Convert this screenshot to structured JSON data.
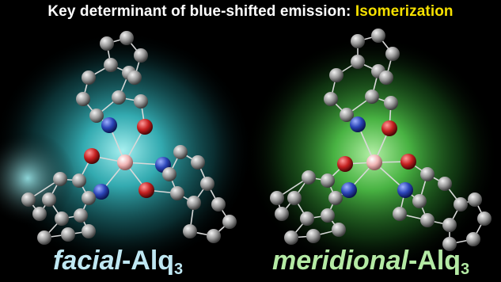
{
  "header": {
    "title_prefix": "Key determinant of blue-shifted emission: ",
    "title_highlight": "Isomerization"
  },
  "panels": [
    {
      "name": "facial",
      "label_italic": "facial",
      "label_rest": "-Alq",
      "label_sub": "3",
      "glow_color": "#3cc8cf"
    },
    {
      "name": "meridional",
      "label_italic": "meridional",
      "label_rest": "-Alq",
      "label_sub": "3",
      "glow_color": "#55d24e"
    }
  ],
  "colors": {
    "carbon": "#9a9a9a",
    "nitrogen": "#2b45b8",
    "oxygen": "#c42020",
    "aluminum": "#f0b4b4",
    "highlight_text": "#f5e000"
  }
}
